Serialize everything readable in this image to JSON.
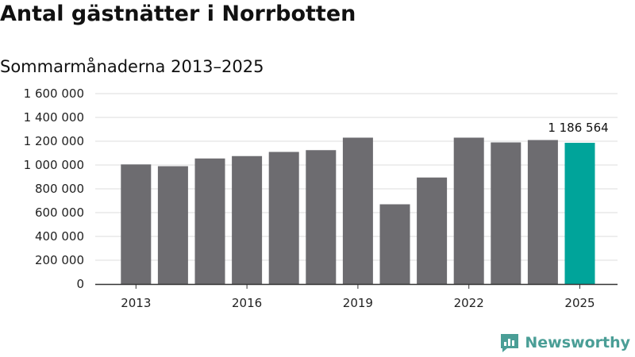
{
  "title": "Antal gästnätter i Norrbotten",
  "subtitle": "Sommarmånaderna 2013–2025",
  "brand": {
    "name": "Newsworthy",
    "icon": "newsworthy-chart-icon"
  },
  "colors": {
    "bar": "#6d6c70",
    "highlight": "#00a49a",
    "grid": "#dddddd",
    "axis": "#333333",
    "brand": "#4a9e96"
  },
  "chart_data": {
    "type": "bar",
    "title": "Antal gästnätter i Norrbotten",
    "subtitle": "Sommarmånaderna 2013–2025",
    "categories": [
      "2013",
      "2014",
      "2015",
      "2016",
      "2017",
      "2018",
      "2019",
      "2020",
      "2021",
      "2022",
      "2023",
      "2024",
      "2025"
    ],
    "values": [
      1005000,
      990000,
      1055000,
      1075000,
      1110000,
      1125000,
      1230000,
      670000,
      895000,
      1230000,
      1190000,
      1210000,
      1186564
    ],
    "highlight_index": 12,
    "data_labels": [
      {
        "index": 12,
        "text": "1 186 564"
      }
    ],
    "y_ticks": [
      {
        "value": 0,
        "label": "0"
      },
      {
        "value": 200000,
        "label": "200 000"
      },
      {
        "value": 400000,
        "label": "400 000"
      },
      {
        "value": 600000,
        "label": "600 000"
      },
      {
        "value": 800000,
        "label": "800 000"
      },
      {
        "value": 1000000,
        "label": "1 000 000"
      },
      {
        "value": 1200000,
        "label": "1 200 000"
      },
      {
        "value": 1400000,
        "label": "1 400 000"
      },
      {
        "value": 1600000,
        "label": "1 600 000"
      }
    ],
    "x_tick_labels": [
      "2013",
      "2016",
      "2019",
      "2022",
      "2025"
    ],
    "ylim": [
      0,
      1600000
    ],
    "grid": true,
    "xlabel": "",
    "ylabel": ""
  }
}
